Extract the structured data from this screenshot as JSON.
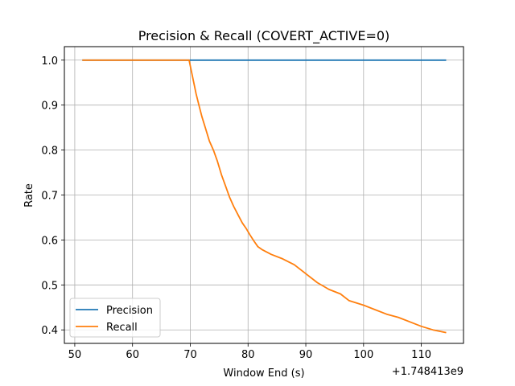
{
  "chart_data": {
    "type": "line",
    "title": "Precision & Recall (COVERT_ACTIVE=0)",
    "xlabel": "Window End (s)",
    "ylabel": "Rate",
    "x_offset_label": "+1.748413e9",
    "xlim": [
      48.2,
      117.3
    ],
    "ylim": [
      0.37,
      1.03
    ],
    "x_ticks": [
      50,
      60,
      70,
      80,
      90,
      100,
      110
    ],
    "y_ticks": [
      0.4,
      0.5,
      0.6,
      0.7,
      0.8,
      0.9,
      1.0
    ],
    "x_tick_labels": [
      "50",
      "60",
      "70",
      "80",
      "90",
      "100",
      "110"
    ],
    "y_tick_labels": [
      "0.4",
      "0.5",
      "0.6",
      "0.7",
      "0.8",
      "0.9",
      "1.0"
    ],
    "grid": true,
    "legend_position": "lower left",
    "series": [
      {
        "name": "Precision",
        "color": "#1f77b4",
        "points": [
          [
            51.3,
            1.0
          ],
          [
            114.3,
            1.0
          ]
        ]
      },
      {
        "name": "Recall",
        "color": "#ff7f0e",
        "points": [
          [
            51.3,
            1.0
          ],
          [
            69.8,
            1.0
          ],
          [
            70.2,
            0.975
          ],
          [
            70.6,
            0.95
          ],
          [
            71.0,
            0.925
          ],
          [
            71.5,
            0.9
          ],
          [
            72.0,
            0.875
          ],
          [
            72.6,
            0.85
          ],
          [
            73.3,
            0.82
          ],
          [
            74.0,
            0.8
          ],
          [
            74.7,
            0.775
          ],
          [
            75.4,
            0.745
          ],
          [
            76.1,
            0.72
          ],
          [
            76.8,
            0.695
          ],
          [
            77.5,
            0.675
          ],
          [
            78.3,
            0.655
          ],
          [
            79.0,
            0.638
          ],
          [
            79.7,
            0.625
          ],
          [
            80.3,
            0.612
          ],
          [
            81.0,
            0.598
          ],
          [
            81.7,
            0.585
          ],
          [
            82.5,
            0.578
          ],
          [
            84.0,
            0.568
          ],
          [
            86.0,
            0.558
          ],
          [
            88.0,
            0.545
          ],
          [
            90.0,
            0.525
          ],
          [
            92.0,
            0.505
          ],
          [
            94.0,
            0.49
          ],
          [
            96.0,
            0.48
          ],
          [
            97.5,
            0.465
          ],
          [
            100.0,
            0.455
          ],
          [
            102.0,
            0.445
          ],
          [
            104.0,
            0.435
          ],
          [
            106.0,
            0.428
          ],
          [
            108.0,
            0.418
          ],
          [
            110.0,
            0.408
          ],
          [
            112.0,
            0.4
          ],
          [
            114.3,
            0.394
          ]
        ]
      }
    ]
  }
}
